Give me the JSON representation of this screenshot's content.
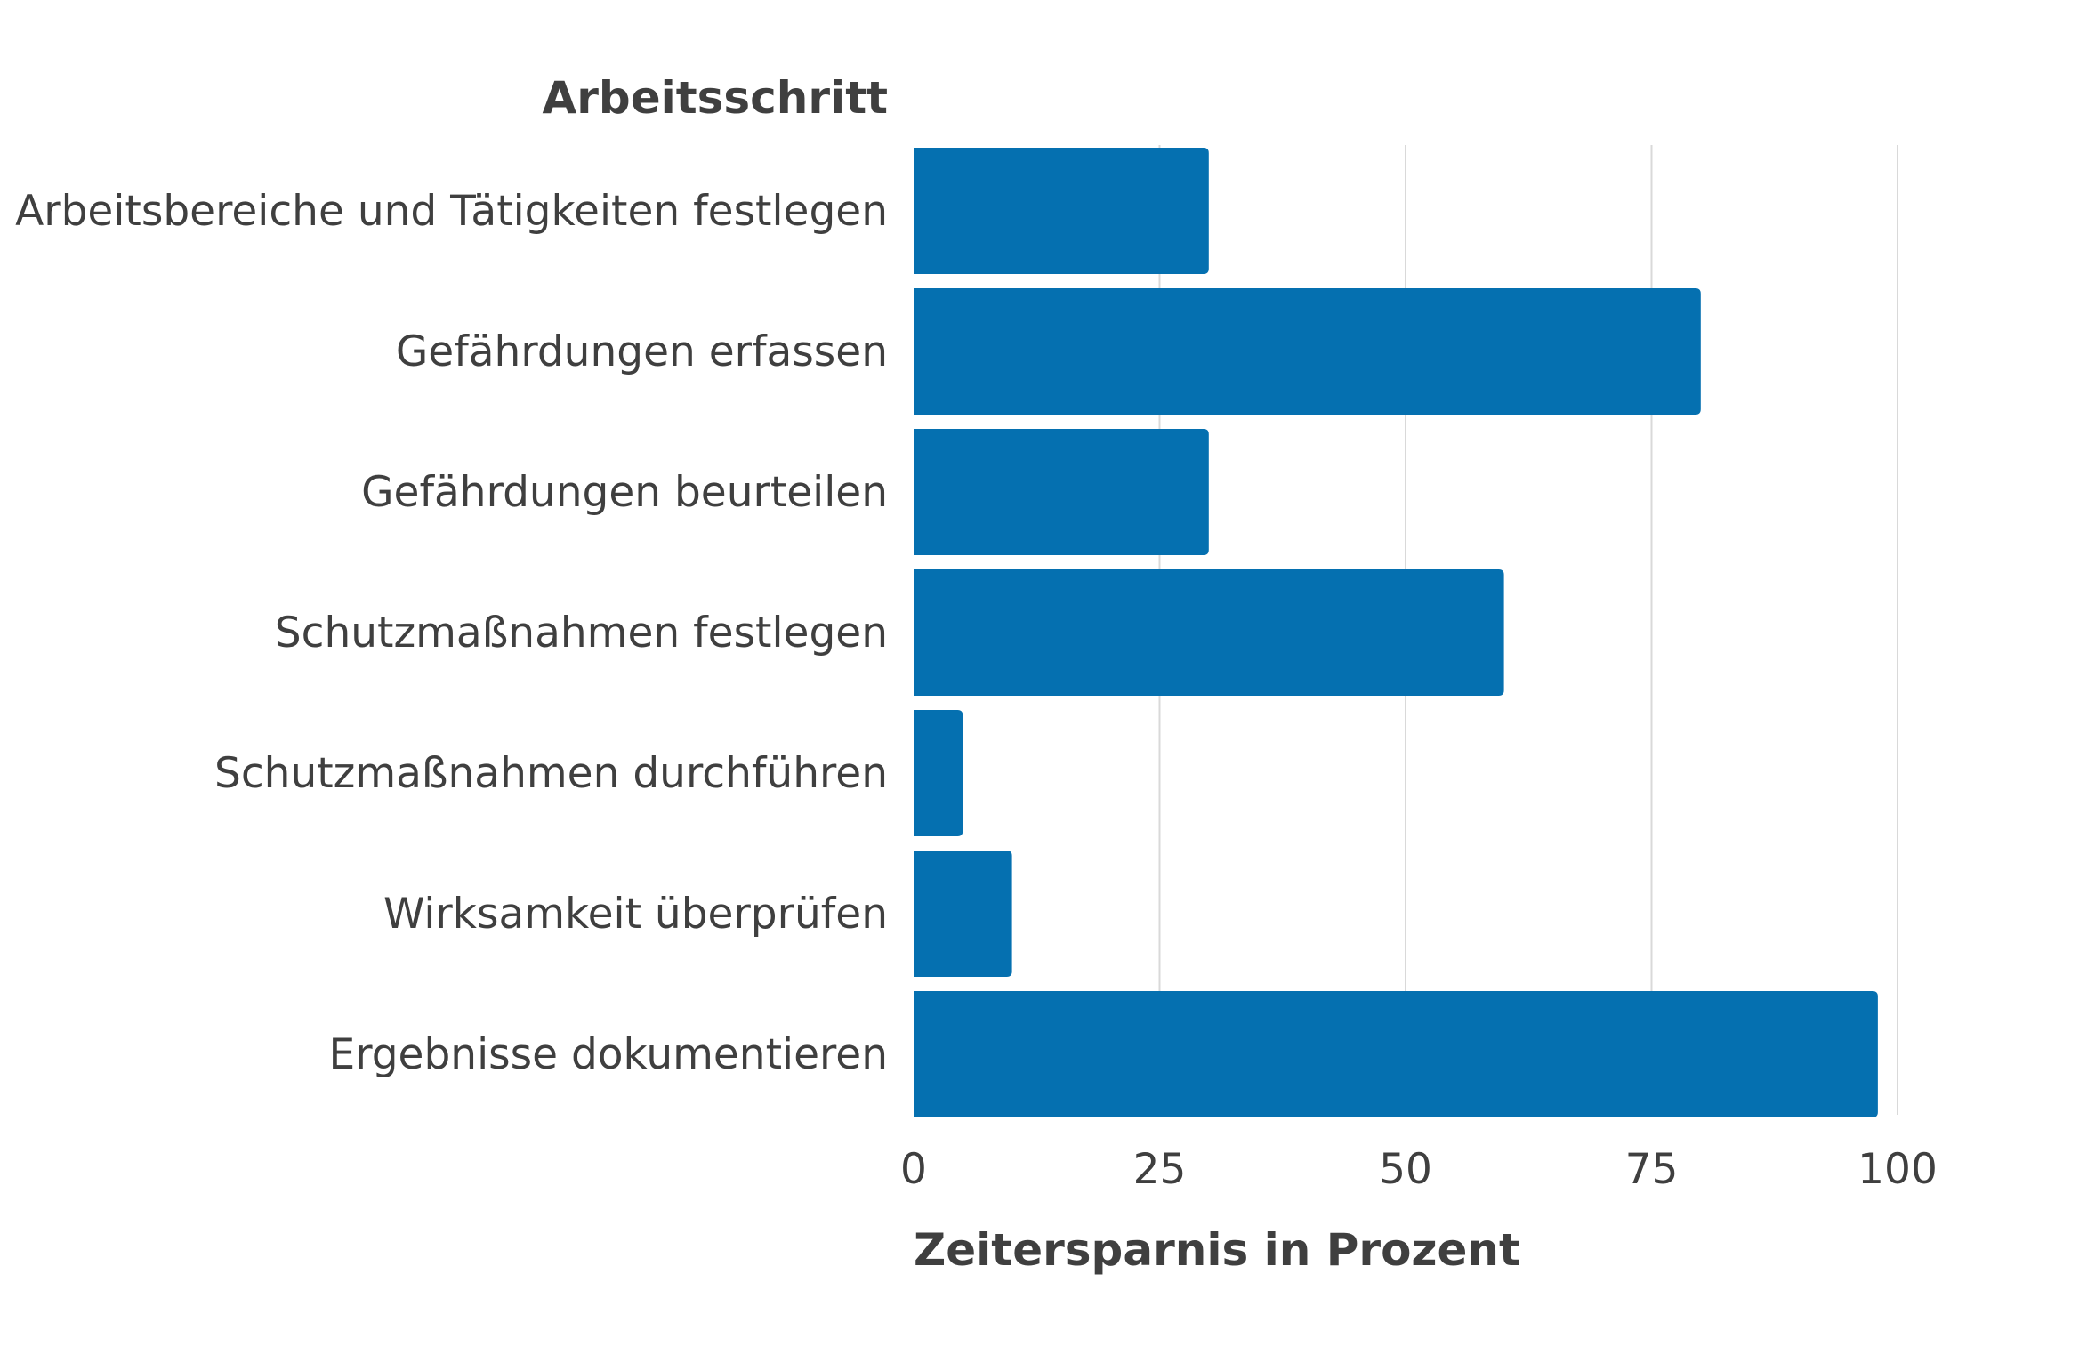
{
  "colors": {
    "bar": "#0570B0",
    "grid": "#d9d9d9",
    "text": "#3f3f3f",
    "background": "#ffffff"
  },
  "chart_data": {
    "type": "bar",
    "orientation": "horizontal",
    "title": "",
    "ylabel": "Arbeitsschritt",
    "xlabel": "Zeitersparnis in Prozent",
    "categories": [
      "Arbeitsbereiche und Tätigkeiten festlegen",
      "Gefährdungen erfassen",
      "Gefährdungen beurteilen",
      "Schutzmaßnahmen festlegen",
      "Schutzmaßnahmen durchführen",
      "Wirksamkeit überprüfen",
      "Ergebnisse dokumentieren"
    ],
    "values": [
      30,
      80,
      30,
      60,
      5,
      10,
      98
    ],
    "xlim": [
      0,
      100
    ],
    "xticks": [
      0,
      25,
      50,
      75,
      100
    ],
    "xtick_labels": [
      "0",
      "25",
      "50",
      "75",
      "100"
    ],
    "grid": true,
    "legend": "none"
  }
}
